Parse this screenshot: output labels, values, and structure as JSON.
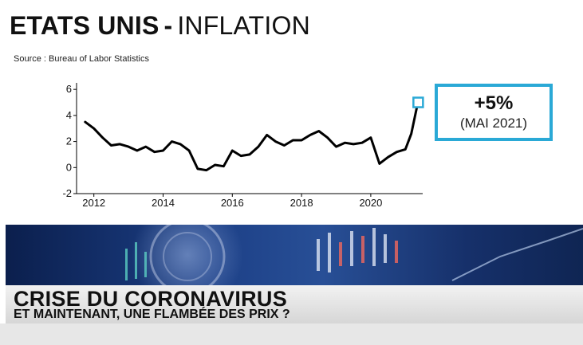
{
  "header": {
    "title_main": "ETATS UNIS",
    "title_sep": "-",
    "title_sub": "INFLATION",
    "source": "Source : Bureau of Labor Statistics"
  },
  "callout": {
    "value": "+5%",
    "date": "(MAI 2021)",
    "border_color": "#2aa9d6"
  },
  "banner": {
    "headline": "CRISE DU CORONAVIRUS",
    "subline": "ET MAINTENANT, UNE FLAMBÉE DES PRIX ?"
  },
  "chart_data": {
    "type": "line",
    "title": "",
    "xlabel": "",
    "ylabel": "",
    "xlim": [
      2011.5,
      2021.5
    ],
    "ylim": [
      -2,
      6.5
    ],
    "xticks": [
      2012,
      2014,
      2016,
      2018,
      2020
    ],
    "yticks": [
      -2,
      0,
      2,
      4,
      6
    ],
    "grid": false,
    "series": [
      {
        "color": "#000000",
        "x": [
          2011.75,
          2012.0,
          2012.25,
          2012.5,
          2012.75,
          2013.0,
          2013.25,
          2013.5,
          2013.75,
          2014.0,
          2014.25,
          2014.5,
          2014.75,
          2015.0,
          2015.25,
          2015.5,
          2015.75,
          2016.0,
          2016.25,
          2016.5,
          2016.75,
          2017.0,
          2017.25,
          2017.5,
          2017.75,
          2018.0,
          2018.25,
          2018.5,
          2018.75,
          2019.0,
          2019.25,
          2019.5,
          2019.75,
          2020.0,
          2020.25,
          2020.5,
          2020.75,
          2021.0,
          2021.17,
          2021.33
        ],
        "y": [
          3.5,
          3.0,
          2.3,
          1.7,
          1.8,
          1.6,
          1.3,
          1.6,
          1.2,
          1.3,
          2.0,
          1.8,
          1.3,
          -0.1,
          -0.2,
          0.2,
          0.1,
          1.3,
          0.9,
          1.0,
          1.6,
          2.5,
          2.0,
          1.7,
          2.1,
          2.1,
          2.5,
          2.8,
          2.3,
          1.6,
          1.9,
          1.8,
          1.9,
          2.3,
          0.3,
          0.8,
          1.2,
          1.4,
          2.6,
          4.6
        ]
      }
    ],
    "highlight": {
      "x": 2021.37,
      "y": 5.0,
      "color": "#2aa9d6"
    }
  }
}
